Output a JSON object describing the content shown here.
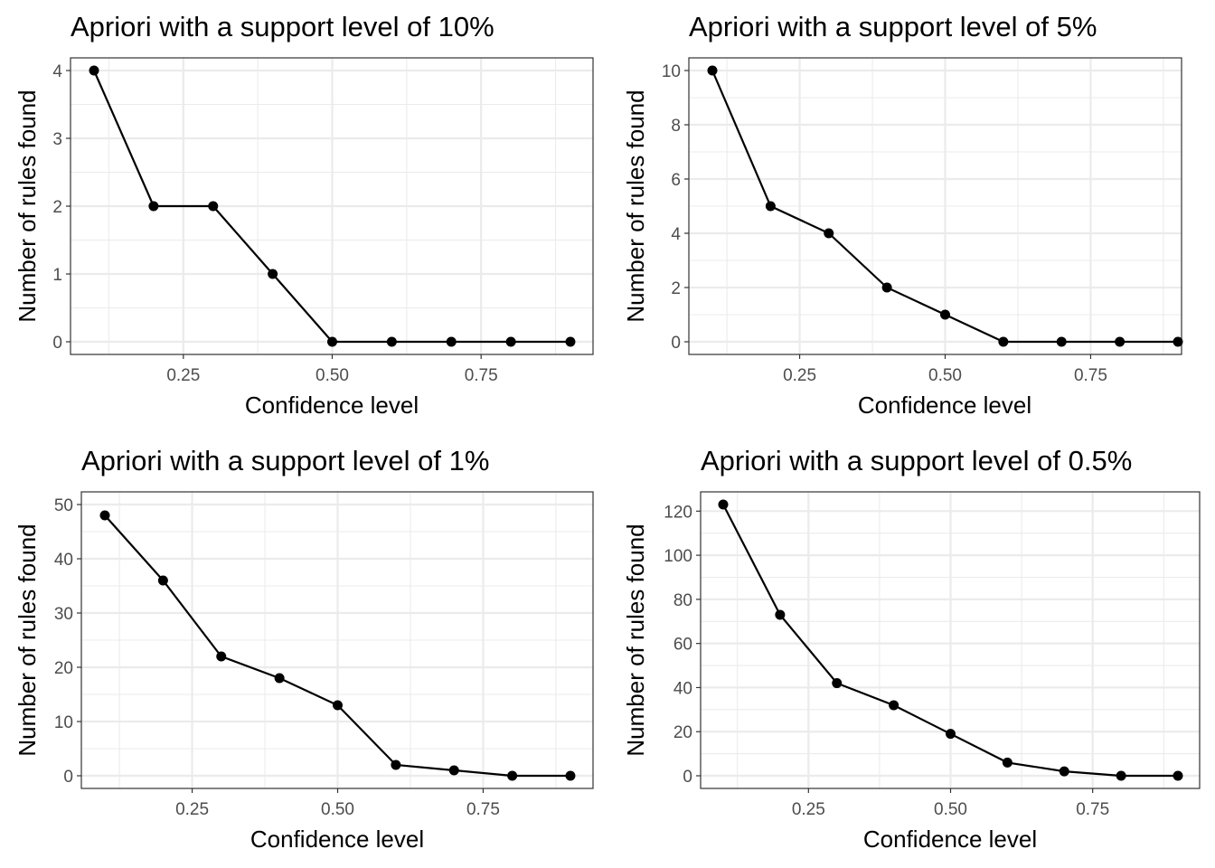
{
  "chart_data": [
    {
      "type": "line",
      "title": "Apriori with a support level of 10%",
      "xlabel": "Confidence level",
      "ylabel": "Number of rules found",
      "x": [
        0.1,
        0.2,
        0.3,
        0.4,
        0.5,
        0.6,
        0.7,
        0.8,
        0.9
      ],
      "values": [
        4,
        2,
        2,
        1,
        0,
        0,
        0,
        0,
        0
      ],
      "xticks": [
        "0.25",
        "0.50",
        "0.75"
      ],
      "yticks": [
        "0",
        "1",
        "2",
        "3",
        "4"
      ],
      "ylim": [
        0,
        4
      ],
      "grid": true
    },
    {
      "type": "line",
      "title": "Apriori with a support level of 5%",
      "xlabel": "Confidence level",
      "ylabel": "Number of rules found",
      "x": [
        0.1,
        0.2,
        0.3,
        0.4,
        0.5,
        0.6,
        0.7,
        0.8,
        0.9
      ],
      "values": [
        10,
        5,
        4,
        2,
        1,
        0,
        0,
        0,
        0
      ],
      "xticks": [
        "0.25",
        "0.50",
        "0.75"
      ],
      "yticks": [
        "0",
        "2",
        "4",
        "6",
        "8",
        "10"
      ],
      "ylim": [
        0,
        10
      ],
      "grid": true
    },
    {
      "type": "line",
      "title": "Apriori with a support level of 1%",
      "xlabel": "Confidence level",
      "ylabel": "Number of rules found",
      "x": [
        0.1,
        0.2,
        0.3,
        0.4,
        0.5,
        0.6,
        0.7,
        0.8,
        0.9
      ],
      "values": [
        48,
        36,
        22,
        18,
        13,
        2,
        1,
        0,
        0
      ],
      "xticks": [
        "0.25",
        "0.50",
        "0.75"
      ],
      "yticks": [
        "0",
        "10",
        "20",
        "30",
        "40",
        "50"
      ],
      "ylim": [
        0,
        50
      ],
      "grid": true
    },
    {
      "type": "line",
      "title": "Apriori with a support level of 0.5%",
      "xlabel": "Confidence level",
      "ylabel": "Number of rules found",
      "x": [
        0.1,
        0.2,
        0.3,
        0.4,
        0.5,
        0.6,
        0.7,
        0.8,
        0.9
      ],
      "values": [
        123,
        73,
        42,
        32,
        19,
        6,
        2,
        0,
        0
      ],
      "xticks": [
        "0.25",
        "0.50",
        "0.75"
      ],
      "yticks": [
        "0",
        "20",
        "40",
        "60",
        "80",
        "100",
        "120"
      ],
      "ylim": [
        0,
        123
      ],
      "grid": true
    }
  ]
}
